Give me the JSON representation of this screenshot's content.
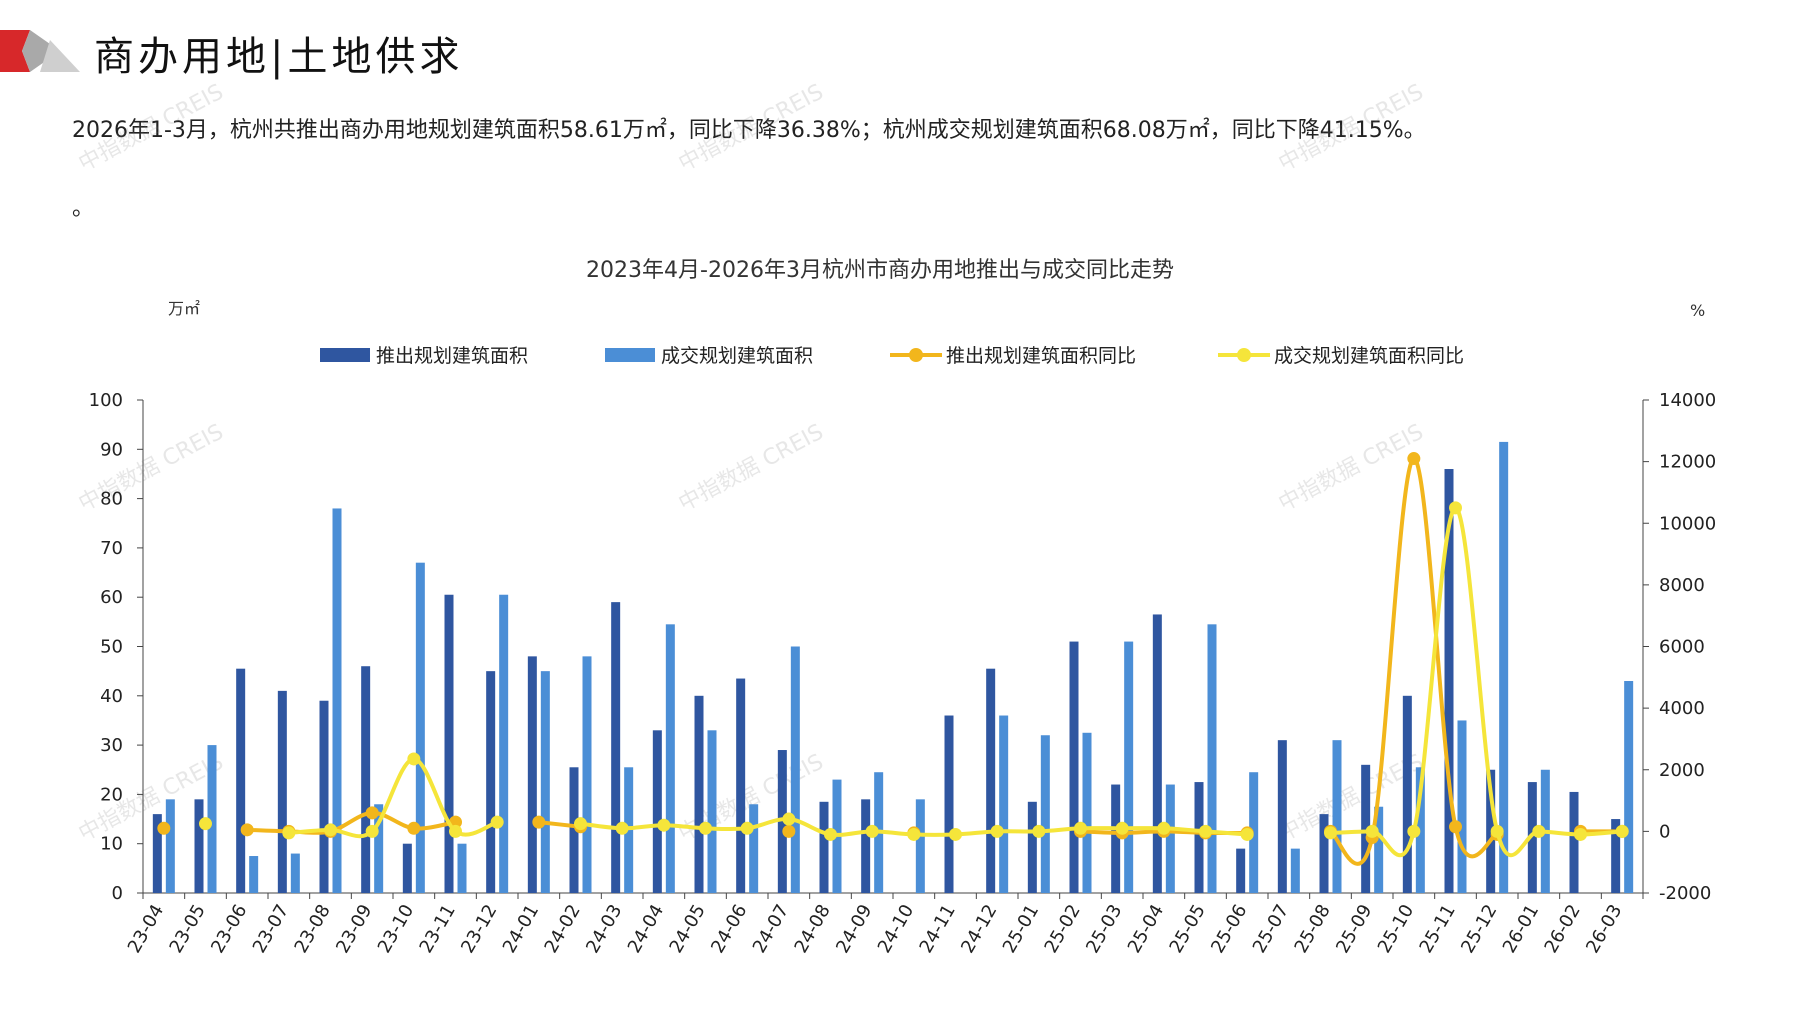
{
  "header": {
    "title": "商办用地|土地供求",
    "logo_colors": [
      "#d7282a",
      "#a9a9a9"
    ]
  },
  "summary_text": "2026年1-3月，杭州共推出商办用地规划建筑面积58.61万㎡，同比下降36.38%；杭州成交规划建筑面积68.08万㎡，同比下降41.15%。",
  "summary_tail": "。",
  "watermark_text": "中指数据 CREIS",
  "chart_data": {
    "type": "bar",
    "title": "2023年4月-2026年3月杭州市商办用地推出与成交同比走势",
    "ylabel_left": "万㎡",
    "ylabel_right": "%",
    "ylim_left": [
      0,
      100
    ],
    "ylim_right": [
      -2000,
      14000
    ],
    "yticks_left": [
      0,
      10,
      20,
      30,
      40,
      50,
      60,
      70,
      80,
      90,
      100
    ],
    "yticks_right": [
      -2000,
      0,
      2000,
      4000,
      6000,
      8000,
      10000,
      12000,
      14000
    ],
    "legend_position": "top-center",
    "grid": false,
    "categories": [
      "23-04",
      "23-05",
      "23-06",
      "23-07",
      "23-08",
      "23-09",
      "23-10",
      "23-11",
      "23-12",
      "24-01",
      "24-02",
      "24-03",
      "24-04",
      "24-05",
      "24-06",
      "24-07",
      "24-08",
      "24-09",
      "24-10",
      "24-11",
      "24-12",
      "25-01",
      "25-02",
      "25-03",
      "25-04",
      "25-05",
      "25-06",
      "25-07",
      "25-08",
      "25-09",
      "25-10",
      "25-11",
      "25-12",
      "26-01",
      "26-02",
      "26-03"
    ],
    "series": [
      {
        "name": "推出规划建筑面积",
        "kind": "bar",
        "axis": "left",
        "color": "#2f56a0",
        "values": [
          16,
          19,
          45.5,
          41,
          39,
          46,
          10,
          60.5,
          45,
          48,
          25.5,
          59,
          33,
          40,
          43.5,
          29,
          18.5,
          19,
          0,
          36,
          45.5,
          18.5,
          51,
          22,
          56.5,
          22.5,
          9,
          31,
          16,
          26,
          40,
          86,
          25,
          22.5,
          20.5,
          15
        ]
      },
      {
        "name": "成交规划建筑面积",
        "kind": "bar",
        "axis": "left",
        "color": "#4b8ed6",
        "values": [
          19,
          30,
          7.5,
          8,
          78,
          18,
          67,
          10,
          60.5,
          45,
          48,
          25.5,
          54.5,
          33,
          18,
          50,
          23,
          24.5,
          19,
          0,
          36,
          32,
          32.5,
          51,
          22,
          54.5,
          24.5,
          9,
          31,
          17.5,
          25.5,
          35,
          91.5,
          25,
          0,
          43
        ]
      },
      {
        "name": "推出规划建筑面积同比",
        "kind": "line",
        "axis": "right",
        "color": "#f2b61c",
        "values": [
          100,
          null,
          50,
          0,
          0,
          600,
          100,
          300,
          null,
          300,
          150,
          null,
          null,
          null,
          null,
          0,
          null,
          null,
          -50,
          null,
          null,
          null,
          0,
          -50,
          0,
          -50,
          -50,
          null,
          0,
          -200,
          12100,
          150,
          -100,
          null,
          0,
          0
        ]
      },
      {
        "name": "成交规划建筑面积同比",
        "kind": "line",
        "axis": "right",
        "color": "#f5e53a",
        "values": [
          null,
          250,
          null,
          -50,
          50,
          0,
          2350,
          0,
          300,
          null,
          250,
          100,
          200,
          100,
          100,
          400,
          -100,
          0,
          -100,
          -100,
          0,
          0,
          100,
          100,
          100,
          0,
          -100,
          null,
          -50,
          0,
          0,
          10500,
          0,
          0,
          -100,
          0
        ]
      }
    ]
  }
}
